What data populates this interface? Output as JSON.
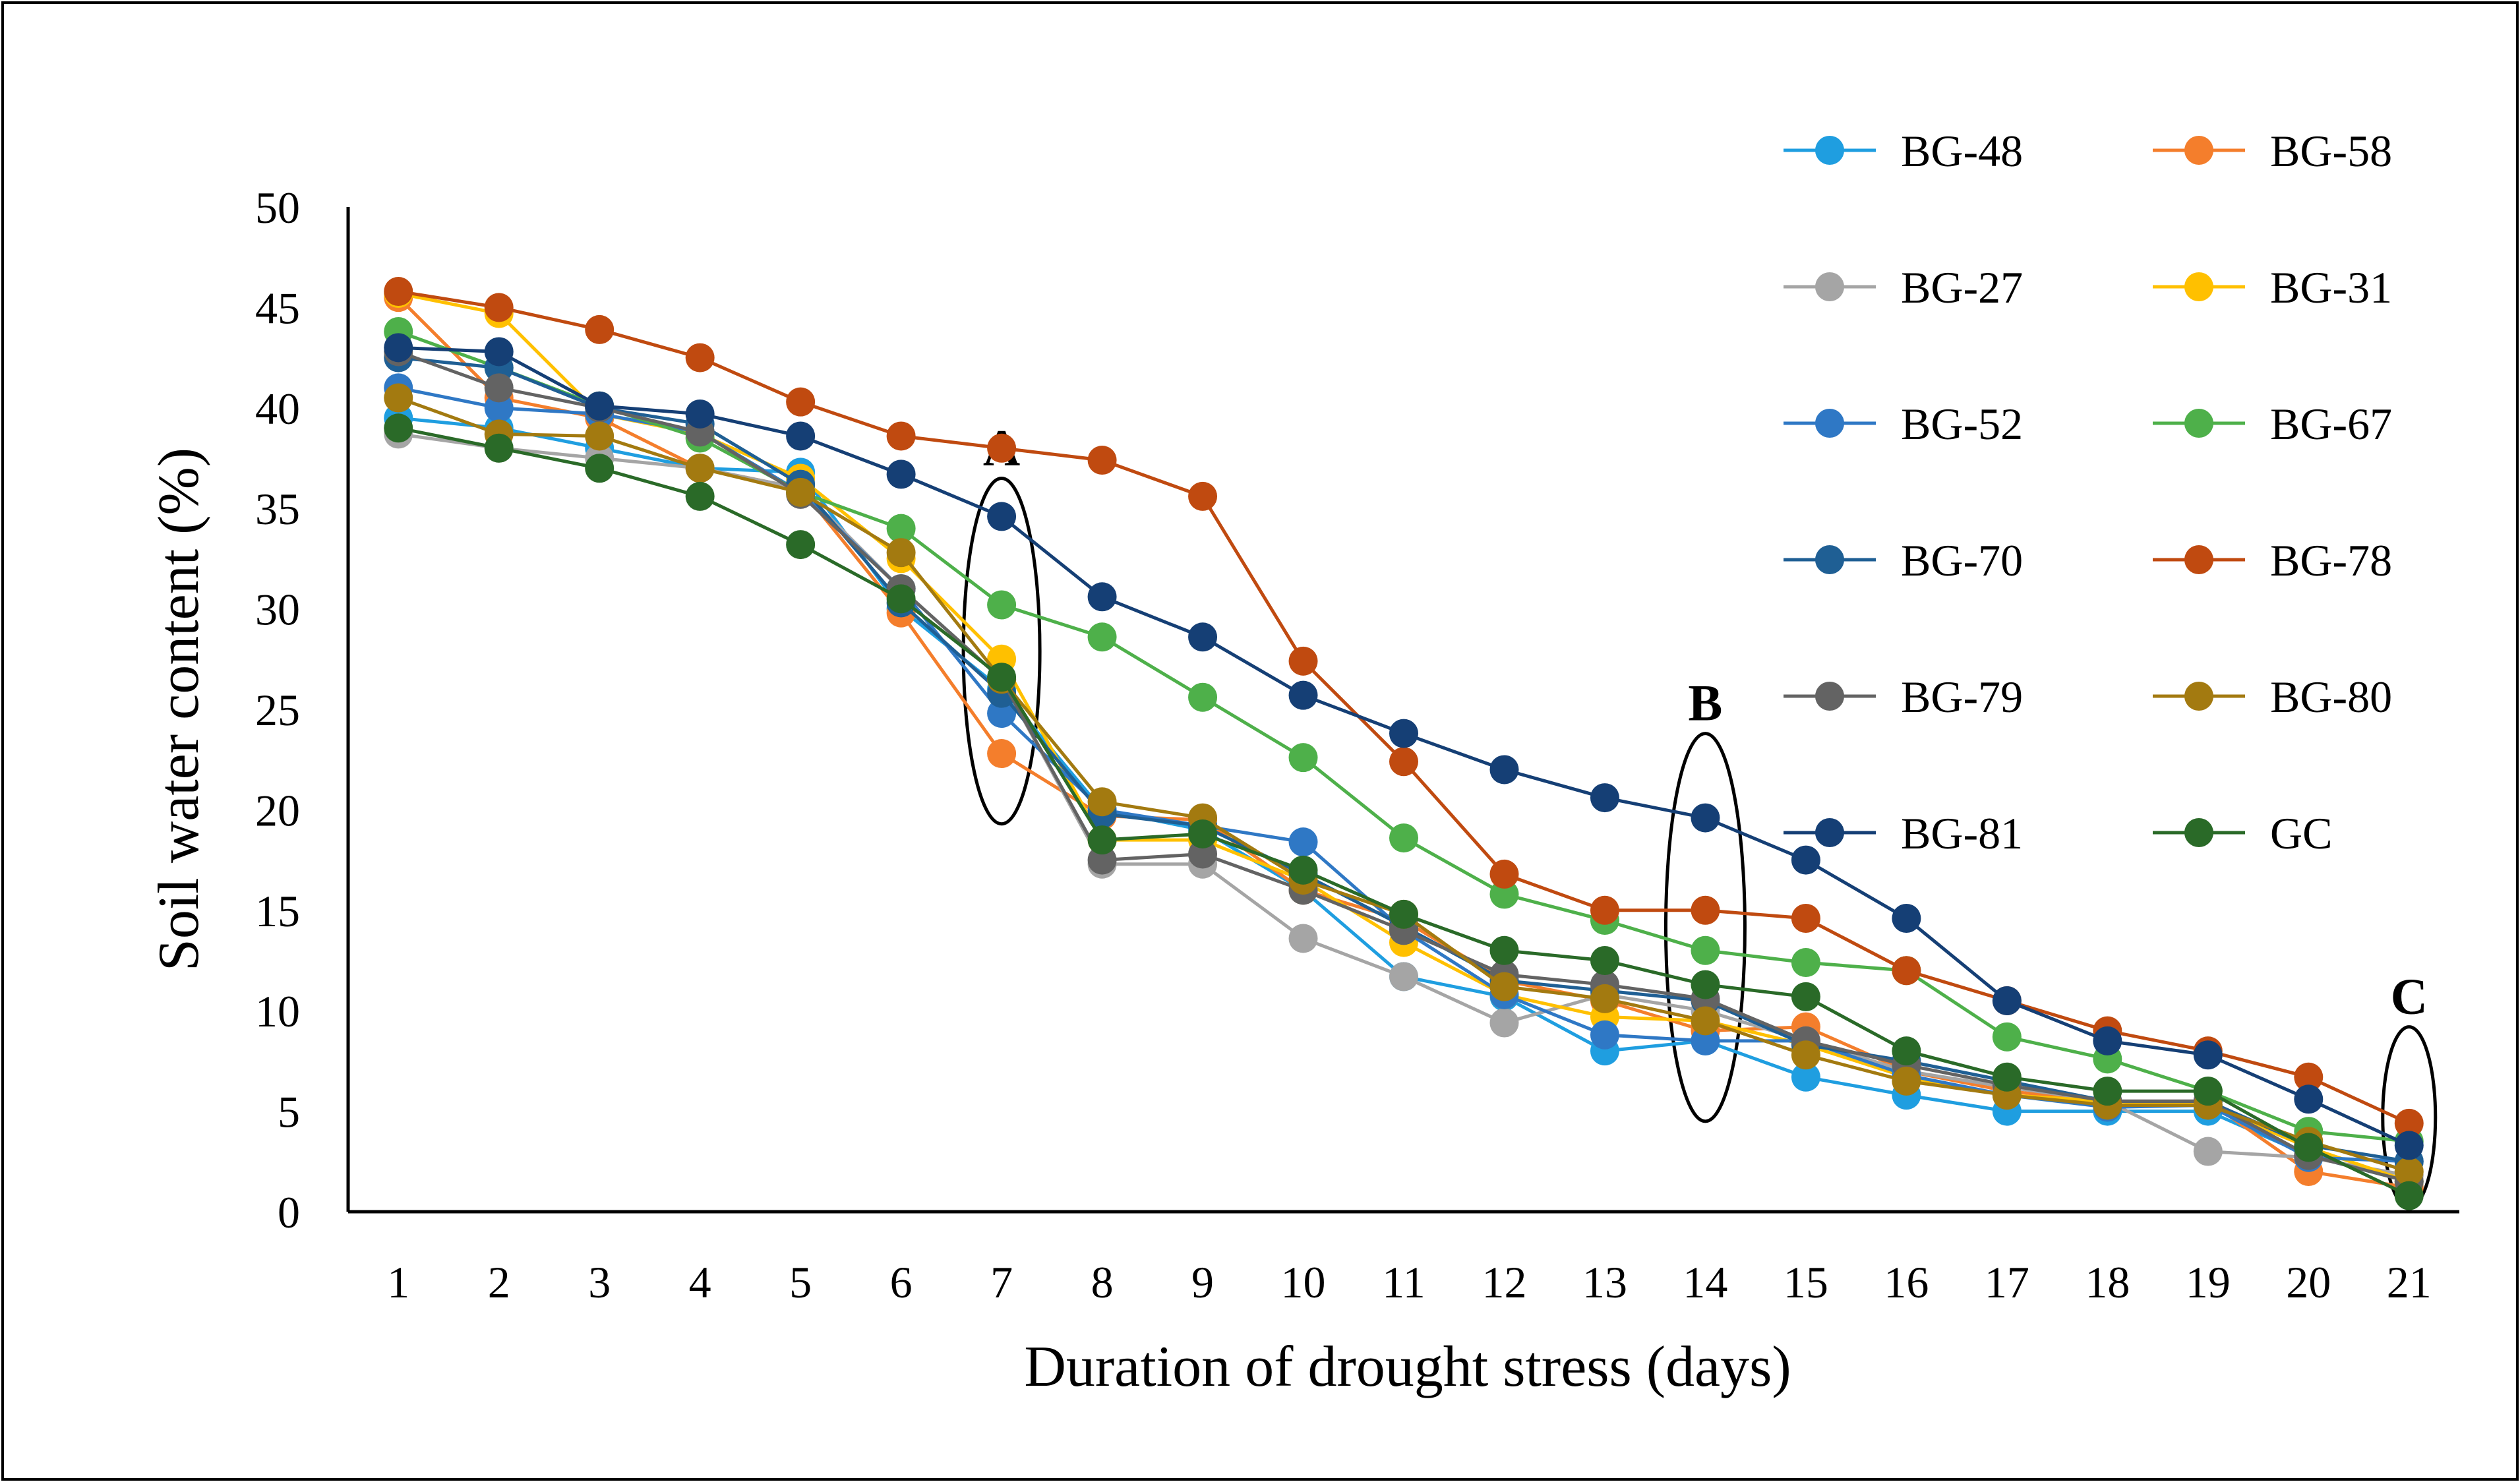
{
  "chart_data": {
    "type": "line",
    "title": "",
    "xlabel": "Duration of drought stress (days)",
    "ylabel": "Soil water content (%)",
    "x": [
      1,
      2,
      3,
      4,
      5,
      6,
      7,
      8,
      9,
      10,
      11,
      12,
      13,
      14,
      15,
      16,
      17,
      18,
      19,
      20,
      21
    ],
    "x_tick_labels": [
      "1",
      "2",
      "3",
      "4",
      "5",
      "6",
      "7",
      "8",
      "9",
      "10",
      "11",
      "12",
      "13",
      "14",
      "15",
      "16",
      "17",
      "18",
      "19",
      "20",
      "21"
    ],
    "ylim": [
      0,
      50
    ],
    "y_ticks": [
      0,
      5,
      10,
      15,
      20,
      25,
      30,
      35,
      40,
      45,
      50
    ],
    "y_tick_labels": [
      "0",
      "5",
      "10",
      "15",
      "20",
      "25",
      "30",
      "35",
      "40",
      "45",
      "50"
    ],
    "grid": false,
    "legend_position": "right",
    "series": [
      {
        "name": "BG-48",
        "color": "#1f9ee0",
        "values": [
          39.5,
          39,
          38,
          37,
          36.8,
          30,
          26,
          20,
          19,
          16,
          11.7,
          10.7,
          8,
          8.5,
          6.7,
          5.8,
          5,
          5,
          5,
          2.8,
          1.5
        ]
      },
      {
        "name": "BG-58",
        "color": "#f47e2c",
        "values": [
          45.5,
          40.5,
          39.5,
          37,
          36,
          29.8,
          22.8,
          19.7,
          19.5,
          16,
          14.5,
          11.5,
          10.5,
          9,
          9.2,
          7,
          6,
          5.5,
          5.5,
          2,
          1.2
        ]
      },
      {
        "name": "BG-27",
        "color": "#a5a5a5",
        "values": [
          38.7,
          38,
          37.5,
          37,
          36,
          31,
          26.5,
          17.3,
          17.3,
          13.6,
          11.7,
          9.4,
          10.8,
          10,
          8.5,
          7,
          6.2,
          5.5,
          3,
          2.7,
          1.8
        ]
      },
      {
        "name": "BG-31",
        "color": "#ffc000",
        "values": [
          45.7,
          44.7,
          39.7,
          38.7,
          36.5,
          32.5,
          27.5,
          18.5,
          18.5,
          16.5,
          13.4,
          10.8,
          9.7,
          9.5,
          8.3,
          6.7,
          5.8,
          5.5,
          5.3,
          3.2,
          1.5
        ]
      },
      {
        "name": "BG-52",
        "color": "#2f78c5",
        "values": [
          41,
          40,
          39.7,
          38.8,
          35.8,
          31,
          24.8,
          20,
          19.2,
          18.4,
          14,
          10.8,
          8.8,
          8.5,
          8.5,
          6.8,
          5.8,
          5.2,
          5.3,
          2.7,
          2.5
        ]
      },
      {
        "name": "BG-67",
        "color": "#4eb04a",
        "values": [
          43.8,
          42,
          40.1,
          38.5,
          35.8,
          34,
          30.2,
          28.6,
          25.6,
          22.6,
          18.6,
          15.8,
          14.5,
          13,
          12.4,
          12,
          8.7,
          7.6,
          6,
          4,
          3.5
        ]
      },
      {
        "name": "BG-70",
        "color": "#1f5f94",
        "values": [
          42.5,
          42,
          40,
          39.2,
          36.2,
          30.3,
          25.8,
          19.8,
          19.2,
          16.8,
          14.2,
          11.5,
          11,
          10.5,
          8.3,
          7.5,
          6.5,
          5.5,
          5.5,
          3.3,
          2.5
        ]
      },
      {
        "name": "BG-78",
        "color": "#c04a10",
        "values": [
          45.8,
          45,
          43.9,
          42.5,
          40.3,
          38.6,
          38,
          37.4,
          35.6,
          27.4,
          22.4,
          16.8,
          15,
          15,
          14.6,
          12,
          10.5,
          9,
          8,
          6.7,
          4.4
        ]
      },
      {
        "name": "BG-79",
        "color": "#636363",
        "values": [
          42.8,
          41,
          40,
          38.8,
          35.7,
          31,
          26.5,
          17.5,
          17.8,
          16,
          14,
          11.8,
          11.3,
          10.6,
          8.5,
          7.3,
          6.3,
          5.5,
          5.5,
          2.8,
          1.5
        ]
      },
      {
        "name": "BG-80",
        "color": "#a37a10",
        "values": [
          40.5,
          38.7,
          38.6,
          37,
          35.8,
          32.8,
          26.5,
          20.4,
          19.6,
          16.5,
          14.8,
          11.2,
          10.6,
          9.5,
          7.8,
          6.5,
          5.8,
          5.3,
          5.3,
          3.5,
          2
        ]
      },
      {
        "name": "BG-81",
        "color": "#153f75",
        "values": [
          43,
          42.8,
          40.1,
          39.7,
          38.6,
          36.7,
          34.6,
          30.6,
          28.6,
          25.7,
          23.8,
          22,
          20.6,
          19.6,
          17.5,
          14.6,
          10.5,
          8.5,
          7.8,
          5.6,
          3.3
        ]
      },
      {
        "name": "GC",
        "color": "#2a6a28",
        "values": [
          39,
          38,
          37,
          35.6,
          33.2,
          30.5,
          26.6,
          18.5,
          18.8,
          17,
          14.8,
          13,
          12.5,
          11.3,
          10.7,
          8,
          6.7,
          6,
          6,
          3.2,
          0.8
        ]
      }
    ],
    "annotations": [
      {
        "label": "A",
        "x": 7
      },
      {
        "label": "B",
        "x": 14
      },
      {
        "label": "C",
        "x": 21
      }
    ]
  }
}
